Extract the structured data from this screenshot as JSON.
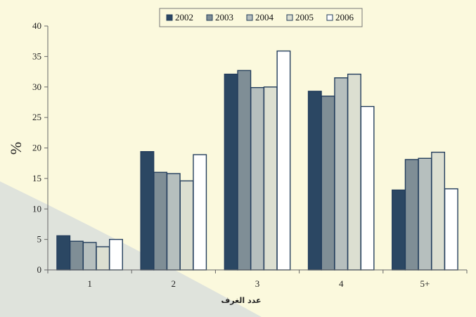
{
  "chart_data": {
    "type": "bar",
    "title": "",
    "xlabel": "عدد الغرف",
    "ylabel": "%",
    "ylim": [
      0,
      40
    ],
    "yticks": [
      0,
      5,
      10,
      15,
      20,
      25,
      30,
      35,
      40
    ],
    "categories": [
      "1",
      "2",
      "3",
      "4",
      "5+"
    ],
    "legend_position": "top-center",
    "series": [
      {
        "name": "2002",
        "color": "#2b4763",
        "values": [
          5.6,
          19.4,
          32.1,
          29.3,
          13.1
        ]
      },
      {
        "name": "2003",
        "color": "#7f8e96",
        "values": [
          4.7,
          16.0,
          32.7,
          28.5,
          18.1
        ]
      },
      {
        "name": "2004",
        "color": "#b6bfbe",
        "values": [
          4.5,
          15.8,
          29.9,
          31.5,
          18.3
        ]
      },
      {
        "name": "2005",
        "color": "#dcdfd1",
        "values": [
          3.8,
          14.6,
          30.0,
          32.1,
          19.3
        ]
      },
      {
        "name": "2006",
        "color": "#ffffff",
        "values": [
          5.0,
          18.9,
          35.9,
          26.8,
          13.3
        ]
      }
    ]
  }
}
